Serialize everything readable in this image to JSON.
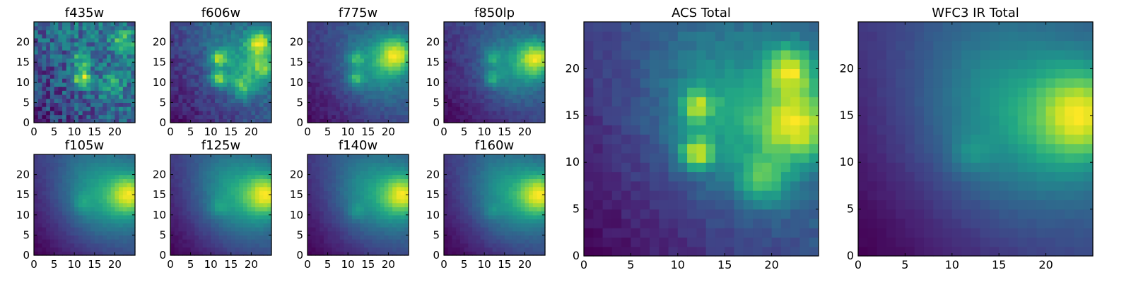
{
  "chart_data": [
    {
      "type": "heatmap",
      "title": "f435w",
      "xticks": [
        0,
        5,
        10,
        15,
        20
      ],
      "yticks": [
        0,
        5,
        10,
        15,
        20
      ],
      "xlim": [
        0,
        25
      ],
      "ylim": [
        0,
        25
      ],
      "colormap": "viridis",
      "grid": false,
      "grid_size": 25,
      "seed": 11,
      "model": {
        "noise": 0.55,
        "offset": 0.25,
        "blobs": [
          {
            "x": 12,
            "y": 11,
            "s": 1.6,
            "a": 0.85
          },
          {
            "x": 12,
            "y": 16,
            "s": 1.5,
            "a": 0.55
          },
          {
            "x": 22,
            "y": 20,
            "s": 2.0,
            "a": 0.55
          },
          {
            "x": 19,
            "y": 9,
            "s": 2.0,
            "a": 0.35
          }
        ]
      }
    },
    {
      "type": "heatmap",
      "title": "f606w",
      "xticks": [
        0,
        5,
        10,
        15,
        20
      ],
      "yticks": [
        0,
        5,
        10,
        15,
        20
      ],
      "xlim": [
        0,
        25
      ],
      "ylim": [
        0,
        25
      ],
      "colormap": "viridis",
      "grid": false,
      "grid_size": 25,
      "seed": 12,
      "model": {
        "noise": 0.18,
        "offset": 0.22,
        "radial": 0.0,
        "blobs": [
          {
            "x": 12,
            "y": 11,
            "s": 1.3,
            "a": 0.7
          },
          {
            "x": 12,
            "y": 16,
            "s": 1.3,
            "a": 0.6
          },
          {
            "x": 22,
            "y": 20,
            "s": 2.2,
            "a": 0.75
          },
          {
            "x": 23,
            "y": 14,
            "s": 2.4,
            "a": 0.55
          },
          {
            "x": 18,
            "y": 9,
            "s": 2.0,
            "a": 0.45
          },
          {
            "x": 16,
            "y": 15,
            "s": 5.0,
            "a": 0.3
          }
        ]
      }
    },
    {
      "type": "heatmap",
      "title": "f775w",
      "xticks": [
        0,
        5,
        10,
        15,
        20
      ],
      "yticks": [
        0,
        5,
        10,
        15,
        20
      ],
      "xlim": [
        0,
        25
      ],
      "ylim": [
        0,
        25
      ],
      "colormap": "viridis",
      "grid": false,
      "grid_size": 25,
      "seed": 13,
      "model": {
        "noise": 0.12,
        "offset": 0.2,
        "blobs": [
          {
            "x": 12,
            "y": 11,
            "s": 1.3,
            "a": 0.55
          },
          {
            "x": 12,
            "y": 16,
            "s": 1.3,
            "a": 0.45
          },
          {
            "x": 22,
            "y": 17,
            "s": 3.0,
            "a": 0.85
          },
          {
            "x": 17,
            "y": 14,
            "s": 6.0,
            "a": 0.45
          }
        ]
      }
    },
    {
      "type": "heatmap",
      "title": "f850lp",
      "xticks": [
        0,
        5,
        10,
        15,
        20
      ],
      "yticks": [
        0,
        5,
        10,
        15,
        20
      ],
      "xlim": [
        0,
        25
      ],
      "ylim": [
        0,
        25
      ],
      "colormap": "viridis",
      "grid": false,
      "grid_size": 25,
      "seed": 14,
      "model": {
        "noise": 0.13,
        "offset": 0.18,
        "blobs": [
          {
            "x": 12,
            "y": 11,
            "s": 1.3,
            "a": 0.45
          },
          {
            "x": 12,
            "y": 16,
            "s": 1.3,
            "a": 0.35
          },
          {
            "x": 23,
            "y": 16,
            "s": 3.0,
            "a": 0.9
          },
          {
            "x": 17,
            "y": 14,
            "s": 6.0,
            "a": 0.45
          }
        ]
      }
    },
    {
      "type": "heatmap",
      "title": "f105w",
      "xticks": [
        0,
        5,
        10,
        15,
        20
      ],
      "yticks": [
        0,
        5,
        10,
        15,
        20
      ],
      "xlim": [
        0,
        25
      ],
      "ylim": [
        0,
        25
      ],
      "colormap": "viridis",
      "grid": false,
      "grid_size": 25,
      "seed": 15,
      "model": {
        "noise": 0.05,
        "offset": 0.12,
        "blobs": [
          {
            "x": 24,
            "y": 15,
            "s": 3.5,
            "a": 0.75
          },
          {
            "x": 17,
            "y": 15,
            "s": 7.5,
            "a": 0.5
          },
          {
            "x": 12,
            "y": 13,
            "s": 1.6,
            "a": 0.2
          }
        ]
      }
    },
    {
      "type": "heatmap",
      "title": "f125w",
      "xticks": [
        0,
        5,
        10,
        15,
        20
      ],
      "yticks": [
        0,
        5,
        10,
        15,
        20
      ],
      "xlim": [
        0,
        25
      ],
      "ylim": [
        0,
        25
      ],
      "colormap": "viridis",
      "grid": false,
      "grid_size": 25,
      "seed": 16,
      "model": {
        "noise": 0.05,
        "offset": 0.12,
        "blobs": [
          {
            "x": 24,
            "y": 15,
            "s": 3.5,
            "a": 0.75
          },
          {
            "x": 17,
            "y": 15,
            "s": 7.5,
            "a": 0.5
          },
          {
            "x": 12,
            "y": 12,
            "s": 1.5,
            "a": 0.2
          }
        ]
      }
    },
    {
      "type": "heatmap",
      "title": "f140w",
      "xticks": [
        0,
        5,
        10,
        15,
        20
      ],
      "yticks": [
        0,
        5,
        10,
        15,
        20
      ],
      "xlim": [
        0,
        25
      ],
      "ylim": [
        0,
        25
      ],
      "colormap": "viridis",
      "grid": false,
      "grid_size": 25,
      "seed": 17,
      "model": {
        "noise": 0.05,
        "offset": 0.1,
        "blobs": [
          {
            "x": 24,
            "y": 15,
            "s": 3.5,
            "a": 0.8
          },
          {
            "x": 17,
            "y": 15,
            "s": 7.5,
            "a": 0.5
          },
          {
            "x": 12,
            "y": 11,
            "s": 1.3,
            "a": 0.2
          }
        ]
      }
    },
    {
      "type": "heatmap",
      "title": "f160w",
      "xticks": [
        0,
        5,
        10,
        15,
        20
      ],
      "yticks": [
        0,
        5,
        10,
        15,
        20
      ],
      "xlim": [
        0,
        25
      ],
      "ylim": [
        0,
        25
      ],
      "colormap": "viridis",
      "grid": false,
      "grid_size": 25,
      "seed": 18,
      "model": {
        "noise": 0.05,
        "offset": 0.1,
        "blobs": [
          {
            "x": 24,
            "y": 15,
            "s": 3.5,
            "a": 0.8
          },
          {
            "x": 17,
            "y": 15,
            "s": 7.5,
            "a": 0.5
          },
          {
            "x": 12,
            "y": 11,
            "s": 1.3,
            "a": 0.15
          }
        ]
      }
    },
    {
      "type": "heatmap",
      "title": "ACS Total",
      "xticks": [
        0,
        5,
        10,
        15,
        20
      ],
      "yticks": [
        0,
        5,
        10,
        15,
        20
      ],
      "xlim": [
        0,
        25
      ],
      "ylim": [
        0,
        25
      ],
      "colormap": "viridis",
      "grid": false,
      "grid_size": 25,
      "seed": 21,
      "model": {
        "noise": 0.1,
        "offset": 0.2,
        "blobs": [
          {
            "x": 12,
            "y": 11,
            "s": 1.2,
            "a": 0.7
          },
          {
            "x": 12,
            "y": 16,
            "s": 1.2,
            "a": 0.55
          },
          {
            "x": 22,
            "y": 20,
            "s": 1.8,
            "a": 0.65
          },
          {
            "x": 23,
            "y": 14,
            "s": 2.8,
            "a": 0.7
          },
          {
            "x": 19,
            "y": 8,
            "s": 1.8,
            "a": 0.4
          },
          {
            "x": 16,
            "y": 15,
            "s": 6.0,
            "a": 0.4
          }
        ]
      }
    },
    {
      "type": "heatmap",
      "title": "WFC3 IR Total",
      "xticks": [
        0,
        5,
        10,
        15,
        20
      ],
      "yticks": [
        0,
        5,
        10,
        15,
        20
      ],
      "xlim": [
        0,
        25
      ],
      "ylim": [
        0,
        25
      ],
      "colormap": "viridis",
      "grid": false,
      "grid_size": 25,
      "seed": 22,
      "model": {
        "noise": 0.03,
        "offset": 0.08,
        "blobs": [
          {
            "x": 24,
            "y": 15,
            "s": 3.5,
            "a": 0.85
          },
          {
            "x": 17,
            "y": 15,
            "s": 7.5,
            "a": 0.5
          },
          {
            "x": 12,
            "y": 11,
            "s": 1.4,
            "a": 0.2
          }
        ]
      }
    }
  ]
}
